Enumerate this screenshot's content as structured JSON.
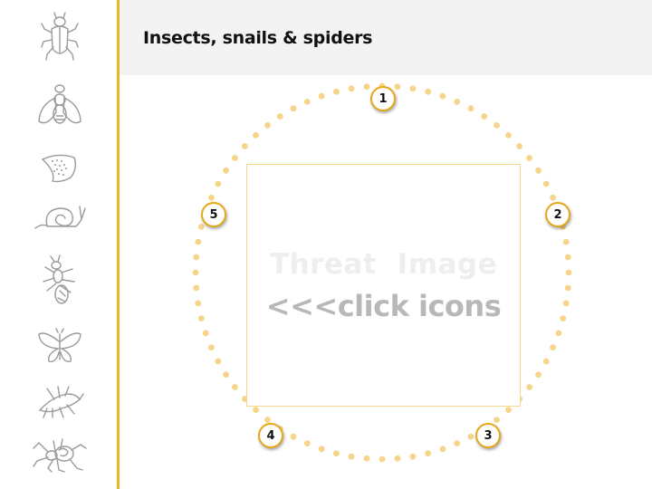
{
  "header": {
    "title": "Insects, snails & spiders"
  },
  "sidebar": {
    "icons": [
      {
        "name": "beetle-icon"
      },
      {
        "name": "fly-icon"
      },
      {
        "name": "mite-leaf-icon"
      },
      {
        "name": "snail-icon"
      },
      {
        "name": "ant-icon"
      },
      {
        "name": "moth-icon"
      },
      {
        "name": "thrips-icon"
      },
      {
        "name": "spider-icon"
      }
    ]
  },
  "colors": {
    "accent": "#f0b429",
    "marker_border": "#e6a817",
    "ring_dot": "#f6d58a",
    "icon_stroke": "#9a9a9a"
  },
  "stage": {
    "placeholder_line1": "Threat  Image",
    "placeholder_line2": "<<<click icons",
    "markers": [
      "1",
      "2",
      "3",
      "4",
      "5"
    ]
  }
}
